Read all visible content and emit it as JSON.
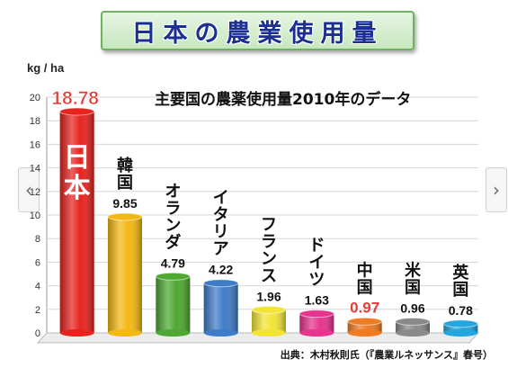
{
  "page": {
    "title": "日本の農業使用量",
    "source": "出典：木村秋則氏（『農業ルネッサンス』春号）",
    "prev_icon": "chevron-left-icon",
    "next_icon": "chevron-right-icon",
    "prev_glyph": "‹",
    "next_glyph": "›"
  },
  "chart_data": {
    "type": "bar",
    "subtitle": "主要国の農薬使用量2010年のデータ",
    "ylabel": "kg / ha",
    "ylim": [
      0,
      20
    ],
    "yticks": [
      0,
      2,
      4,
      6,
      8,
      10,
      12,
      14,
      16,
      18,
      20
    ],
    "grid": true,
    "categories": [
      "日本",
      "韓国",
      "オランダ",
      "イタリア",
      "フランス",
      "ドイツ",
      "中国",
      "米国",
      "英国"
    ],
    "values": [
      18.78,
      9.85,
      4.79,
      4.22,
      1.96,
      1.63,
      0.97,
      0.96,
      0.78
    ],
    "value_labels": [
      "18.78",
      "9.85",
      "4.79",
      "4.22",
      "1.96",
      "1.63",
      "0.97",
      "0.96",
      "0.78"
    ],
    "colors": [
      "#e8231f",
      "#f3b812",
      "#4fa833",
      "#3f7cc8",
      "#f2e437",
      "#e7348e",
      "#ef7b23",
      "#8a8a8a",
      "#22a6dd"
    ],
    "highlight_color": "#e53a35"
  }
}
